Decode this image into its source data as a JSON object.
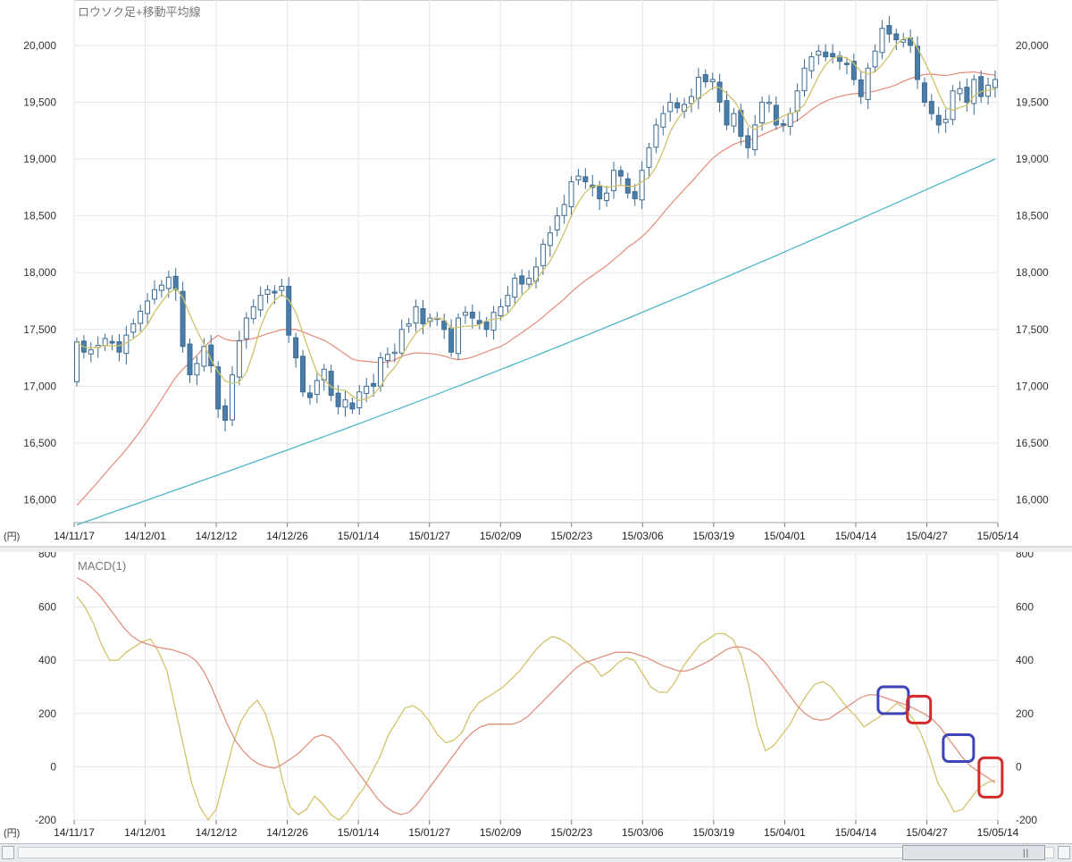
{
  "chart_data": [
    {
      "type": "candlestick",
      "title": "ロウソク足+移動平均線",
      "unit_label": "(円)",
      "ylim": [
        15800,
        20400
      ],
      "y_ticks": [
        16000,
        16500,
        17000,
        17500,
        18000,
        18500,
        19000,
        19500,
        20000
      ],
      "y_tick_labels": [
        "16,000",
        "16,500",
        "17,000",
        "17,500",
        "18,000",
        "18,500",
        "19,000",
        "19,500",
        "20,000"
      ],
      "date_labels": [
        "14/11/17",
        "14/12/01",
        "14/12/12",
        "14/12/26",
        "15/01/14",
        "15/01/27",
        "15/02/09",
        "15/02/23",
        "15/03/06",
        "15/03/19",
        "15/04/01",
        "15/04/14",
        "15/04/27",
        "15/05/14"
      ],
      "closes": [
        17390,
        17300,
        17320,
        17360,
        17420,
        17380,
        17300,
        17450,
        17550,
        17660,
        17750,
        17850,
        17890,
        17960,
        17850,
        17350,
        17100,
        17200,
        17350,
        17180,
        16800,
        16700,
        17100,
        17400,
        17600,
        17700,
        17800,
        17850,
        17820,
        17880,
        17450,
        17250,
        16950,
        16900,
        17050,
        17150,
        16920,
        16820,
        16880,
        16800,
        16950,
        17000,
        17000,
        17250,
        17280,
        17300,
        17500,
        17550,
        17700,
        17550,
        17600,
        17600,
        17500,
        17300,
        17600,
        17650,
        17600,
        17550,
        17500,
        17650,
        17700,
        17800,
        17950,
        17900,
        17950,
        18050,
        18250,
        18350,
        18500,
        18600,
        18800,
        18850,
        18800,
        18750,
        18650,
        18700,
        18900,
        18850,
        18700,
        18650,
        18900,
        19100,
        19300,
        19400,
        19500,
        19450,
        19480,
        19550,
        19720,
        19680,
        19700,
        19500,
        19300,
        19400,
        19200,
        19100,
        19300,
        19500,
        19500,
        19300,
        19300,
        19400,
        19600,
        19800,
        19900,
        19950,
        19900,
        19900,
        19860,
        19840,
        19700,
        19550,
        19800,
        19950,
        20150,
        20100,
        20050,
        20050,
        20000,
        19700,
        19500,
        19400,
        19300,
        19350,
        19600,
        19620,
        19500,
        19700,
        19550,
        19650,
        19700
      ],
      "ma_short": {
        "period": 5,
        "color": "#cfc26a"
      },
      "ma_mid": {
        "period": 25,
        "color": "#e58a7a"
      },
      "ma_long": {
        "period": 75,
        "color": "#4cb6c8"
      },
      "candle_colors": {
        "up": "#ffffff",
        "down": "#4a7ea8",
        "outline": "#3b6a92"
      }
    },
    {
      "type": "line",
      "title": "MACD(1)",
      "unit_label": "(円)",
      "ylim": [
        -200,
        800
      ],
      "y_ticks": [
        -200,
        0,
        200,
        400,
        600,
        800
      ],
      "y_tick_labels": [
        "-200",
        "0",
        "200",
        "400",
        "600",
        "800"
      ],
      "date_labels": [
        "14/11/17",
        "14/12/01",
        "14/12/12",
        "14/12/26",
        "15/01/14",
        "15/01/27",
        "15/02/09",
        "15/02/23",
        "15/03/06",
        "15/03/19",
        "15/04/01",
        "15/04/14",
        "15/04/27",
        "15/05/14"
      ],
      "series": [
        {
          "key": "macd",
          "color": "#d4c26b",
          "values": [
            640,
            600,
            540,
            460,
            400,
            400,
            430,
            450,
            470,
            480,
            430,
            360,
            220,
            80,
            -60,
            -150,
            -200,
            -160,
            -40,
            80,
            170,
            220,
            250,
            200,
            100,
            -40,
            -150,
            -180,
            -160,
            -110,
            -140,
            -180,
            -200,
            -170,
            -120,
            -80,
            -20,
            40,
            120,
            170,
            220,
            230,
            210,
            170,
            120,
            90,
            100,
            130,
            200,
            240,
            260,
            280,
            300,
            330,
            360,
            400,
            440,
            470,
            490,
            480,
            460,
            430,
            400,
            380,
            340,
            360,
            390,
            410,
            400,
            350,
            300,
            280,
            280,
            320,
            380,
            420,
            460,
            480,
            500,
            500,
            480,
            420,
            300,
            150,
            60,
            80,
            120,
            160,
            220,
            270,
            310,
            320,
            300,
            260,
            220,
            190,
            150,
            170,
            190,
            210,
            240,
            220,
            180,
            120,
            40,
            -60,
            -110,
            -170,
            -160,
            -120,
            -80,
            -60,
            -50
          ]
        },
        {
          "key": "signal",
          "color": "#e09080",
          "values": [
            710,
            695,
            670,
            640,
            600,
            560,
            520,
            490,
            470,
            460,
            450,
            445,
            440,
            430,
            420,
            400,
            360,
            300,
            230,
            160,
            100,
            60,
            30,
            10,
            0,
            -5,
            10,
            30,
            50,
            80,
            110,
            120,
            110,
            80,
            40,
            0,
            -40,
            -80,
            -120,
            -150,
            -170,
            -180,
            -170,
            -140,
            -100,
            -60,
            -20,
            20,
            60,
            100,
            130,
            150,
            160,
            160,
            160,
            160,
            170,
            190,
            220,
            250,
            280,
            310,
            340,
            370,
            390,
            400,
            410,
            420,
            430,
            430,
            430,
            420,
            410,
            395,
            380,
            370,
            360,
            360,
            370,
            385,
            400,
            420,
            440,
            450,
            450,
            440,
            420,
            390,
            350,
            310,
            270,
            230,
            200,
            180,
            175,
            180,
            200,
            220,
            240,
            260,
            270,
            270,
            260,
            250,
            240,
            230,
            215,
            200,
            180,
            150,
            110,
            70,
            30,
            0,
            -20,
            -40,
            -60
          ]
        }
      ],
      "highlights": [
        {
          "at": 0.889,
          "color": "#3c44b8"
        },
        {
          "at": 0.917,
          "color": "#d42a2a"
        },
        {
          "at": 0.96,
          "color": "#3c44b8"
        },
        {
          "at": 0.995,
          "color": "#d42a2a"
        }
      ]
    }
  ]
}
